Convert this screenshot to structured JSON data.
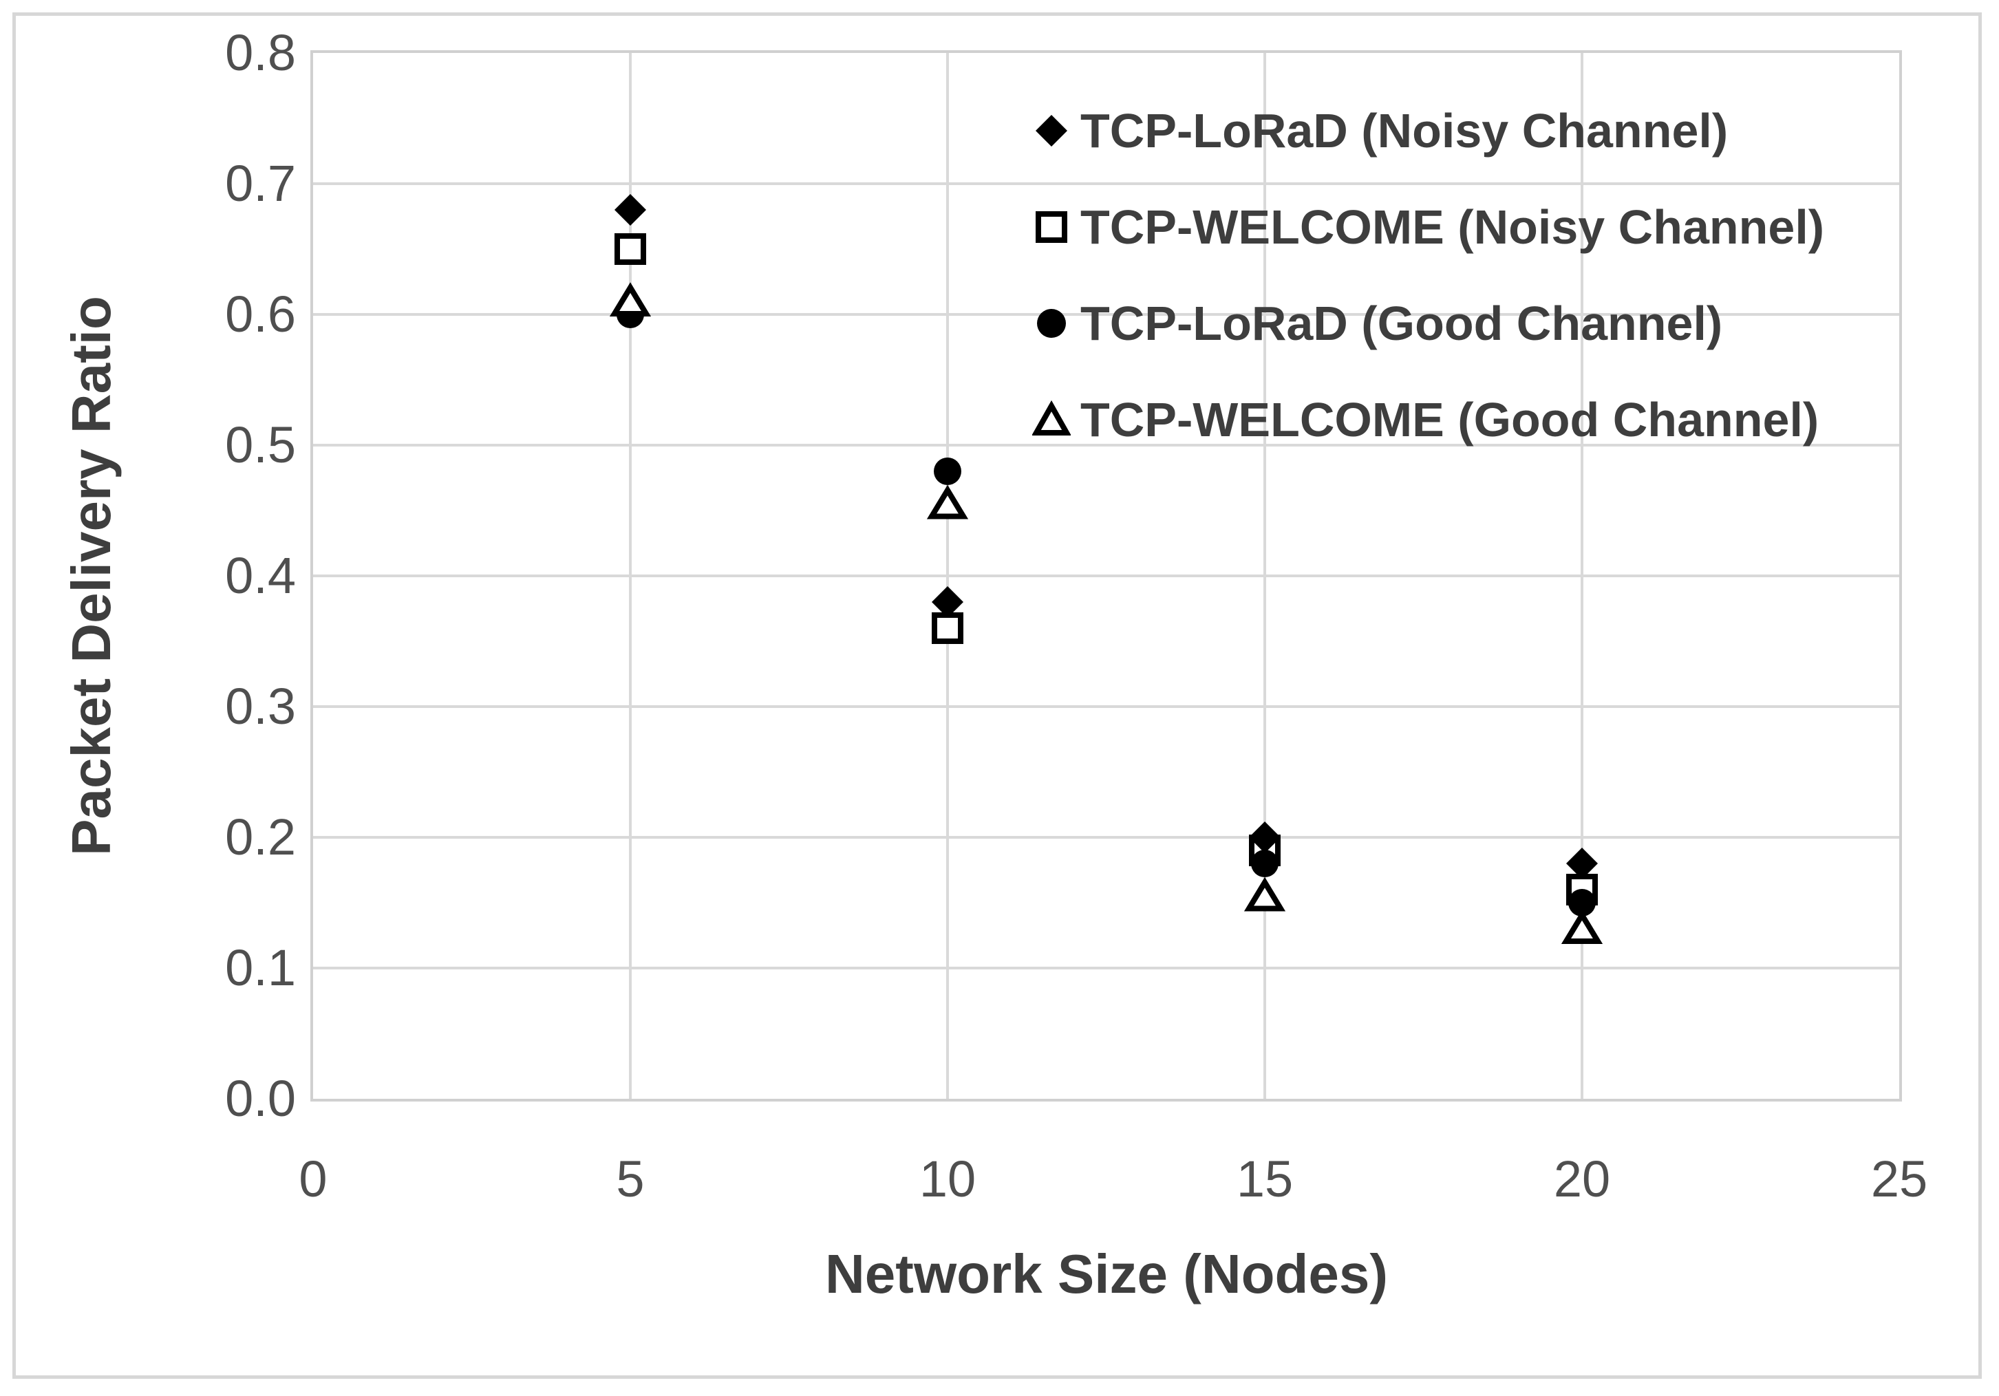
{
  "chart_data": {
    "type": "scatter",
    "title": "",
    "xlabel": "Network Size (Nodes)",
    "ylabel": "Packet Delivery Ratio",
    "xlim": [
      0,
      25
    ],
    "ylim": [
      0.0,
      0.8
    ],
    "x_tick_labels": [
      "0",
      "5",
      "10",
      "15",
      "20",
      "25"
    ],
    "y_tick_labels": [
      "0.0",
      "0.1",
      "0.2",
      "0.3",
      "0.4",
      "0.5",
      "0.6",
      "0.7",
      "0.8"
    ],
    "grid": true,
    "legend_position": "inside-top-right",
    "series": [
      {
        "name": "TCP-LoRaD (Noisy Channel)",
        "marker": "filled-diamond",
        "color": "#000000",
        "points": [
          [
            5,
            0.68
          ],
          [
            10,
            0.38
          ],
          [
            15,
            0.2
          ],
          [
            20,
            0.18
          ]
        ]
      },
      {
        "name": "TCP-WELCOME (Noisy Channel)",
        "marker": "open-square",
        "color": "#000000",
        "points": [
          [
            5,
            0.65
          ],
          [
            10,
            0.36
          ],
          [
            15,
            0.19
          ],
          [
            20,
            0.16
          ]
        ]
      },
      {
        "name": "TCP-LoRaD (Good Channel)",
        "marker": "filled-circle",
        "color": "#000000",
        "points": [
          [
            5,
            0.6
          ],
          [
            10,
            0.48
          ],
          [
            15,
            0.18
          ],
          [
            20,
            0.15
          ]
        ]
      },
      {
        "name": "TCP-WELCOME (Good Channel)",
        "marker": "open-triangle",
        "color": "#000000",
        "points": [
          [
            5,
            0.61
          ],
          [
            10,
            0.455
          ],
          [
            15,
            0.155
          ],
          [
            20,
            0.13
          ]
        ]
      }
    ]
  },
  "colors": {
    "marker": "#000000",
    "marker_fill_open": "#ffffff",
    "gridline": "#d9d9d9",
    "plot_border": "#d0d0d0",
    "figure_border": "#d7d7d7",
    "tick_text": "#4f4f4f",
    "title_text": "#3e3e3e"
  }
}
